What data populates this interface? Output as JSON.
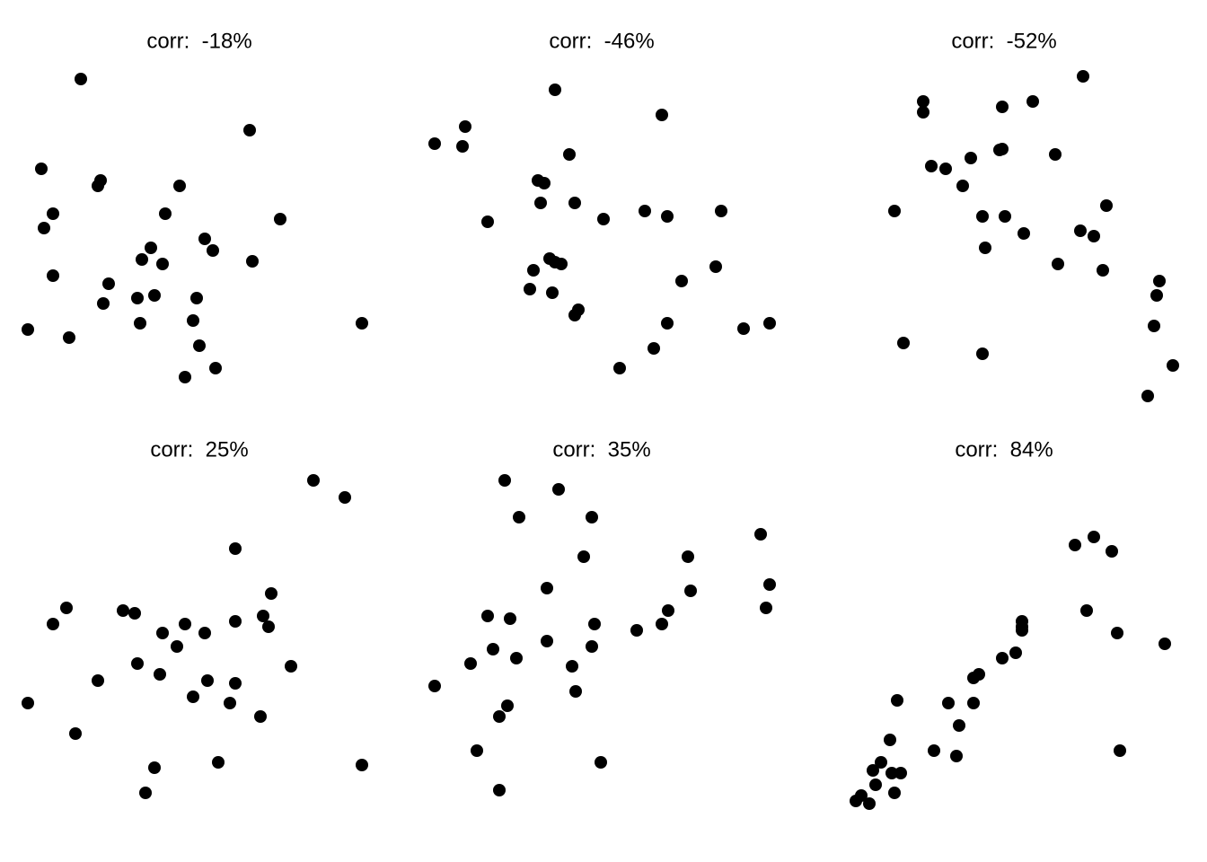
{
  "chart_data": [
    {
      "type": "scatter",
      "title": "corr:  -18%",
      "color": "#000000",
      "x": [
        90,
        278,
        46,
        112,
        109,
        200,
        59,
        184,
        49,
        312,
        228,
        237,
        168,
        158,
        181,
        281,
        59,
        121,
        115,
        153,
        172,
        219,
        215,
        156,
        31,
        77,
        403,
        222,
        240,
        206
      ],
      "y": [
        362,
        305,
        262,
        249,
        243,
        243,
        212,
        212,
        196,
        206,
        184,
        171,
        174,
        161,
        156,
        159,
        143,
        134,
        112,
        118,
        121,
        118,
        93,
        90,
        83,
        74,
        90,
        65,
        40,
        30
      ]
    },
    {
      "type": "scatter",
      "title": "corr:  -46%",
      "color": "#000000",
      "x": [
        170,
        289,
        70,
        36,
        67,
        186,
        151,
        158,
        154,
        192,
        95,
        224,
        270,
        295,
        355,
        164,
        170,
        177,
        146,
        349,
        311,
        142,
        167,
        196,
        192,
        295,
        380,
        409,
        280,
        242
      ],
      "y": [
        350,
        322,
        309,
        290,
        287,
        278,
        249,
        246,
        224,
        224,
        203,
        206,
        215,
        209,
        215,
        162,
        158,
        156,
        149,
        153,
        137,
        128,
        124,
        105,
        99,
        90,
        84,
        90,
        62,
        40
      ]
    },
    {
      "type": "scatter",
      "title": "corr:  -52%",
      "color": "#000000",
      "x": [
        310,
        132,
        132,
        254,
        220,
        220,
        217,
        279,
        185,
        141,
        157,
        176,
        100,
        336,
        198,
        223,
        307,
        322,
        244,
        201,
        282,
        332,
        395,
        392,
        389,
        410,
        382,
        110,
        198
      ],
      "y": [
        365,
        337,
        325,
        337,
        331,
        284,
        283,
        278,
        274,
        265,
        262,
        243,
        215,
        221,
        209,
        209,
        193,
        187,
        190,
        174,
        156,
        149,
        137,
        121,
        87,
        43,
        9,
        68,
        56
      ]
    },
    {
      "type": "scatter",
      "title": "corr:  25%",
      "color": "#000000",
      "x": [
        349,
        384,
        262,
        302,
        74,
        137,
        150,
        59,
        293,
        299,
        206,
        262,
        181,
        228,
        197,
        324,
        153,
        178,
        109,
        231,
        262,
        215,
        256,
        31,
        290,
        84,
        243,
        403,
        172,
        162
      ],
      "y": [
        370,
        351,
        294,
        244,
        228,
        225,
        222,
        210,
        219,
        207,
        210,
        213,
        200,
        200,
        185,
        163,
        166,
        154,
        147,
        147,
        144,
        129,
        122,
        122,
        107,
        88,
        56,
        53,
        50,
        22
      ]
    },
    {
      "type": "scatter",
      "title": "corr:  35%",
      "color": "#000000",
      "x": [
        114,
        174,
        130,
        211,
        399,
        202,
        318,
        161,
        321,
        409,
        405,
        95,
        120,
        296,
        214,
        261,
        289,
        161,
        211,
        101,
        127,
        76,
        189,
        36,
        193,
        117,
        108,
        83,
        221,
        108
      ],
      "y": [
        370,
        360,
        329,
        329,
        310,
        285,
        285,
        250,
        247,
        254,
        228,
        219,
        216,
        225,
        210,
        203,
        210,
        191,
        185,
        182,
        172,
        166,
        163,
        141,
        135,
        119,
        107,
        69,
        56,
        25
      ]
    },
    {
      "type": "scatter",
      "title": "corr:  84%",
      "color": "#000000",
      "x": [
        322,
        301,
        342,
        314,
        242,
        242,
        242,
        348,
        401,
        235,
        220,
        194,
        188,
        103,
        160,
        188,
        172,
        95,
        144,
        169,
        351,
        85,
        76,
        107,
        97,
        79,
        100,
        63,
        57,
        72
      ],
      "y": [
        307,
        298,
        291,
        225,
        213,
        207,
        203,
        200,
        188,
        178,
        172,
        154,
        150,
        125,
        122,
        122,
        97,
        81,
        69,
        63,
        69,
        56,
        47,
        44,
        44,
        31,
        22,
        19,
        13,
        10
      ]
    }
  ]
}
